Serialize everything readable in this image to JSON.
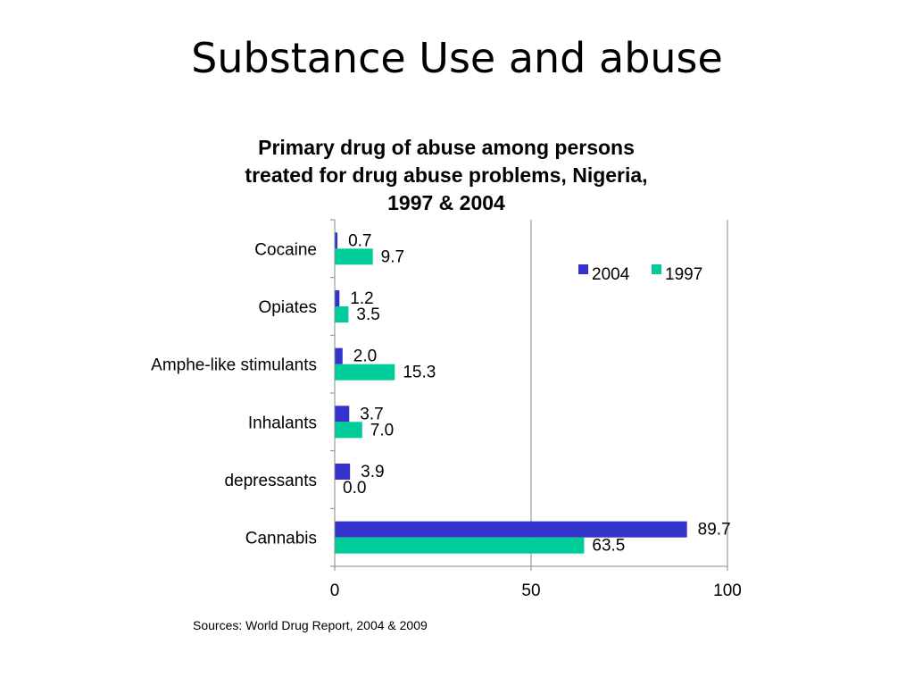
{
  "slide": {
    "title": "Substance Use and abuse"
  },
  "source": "Sources: World Drug Report, 2004 & 2009",
  "chart_data": {
    "type": "bar",
    "orientation": "horizontal",
    "title_lines": [
      "Primary drug of abuse among persons",
      "treated for drug abuse problems, Nigeria,",
      "1997 & 2004"
    ],
    "categories": [
      "Cocaine",
      "Opiates",
      "Amphe-like stimulants",
      "Inhalants",
      "depressants",
      "Cannabis"
    ],
    "series": [
      {
        "name": "2004",
        "color": "#3333cc",
        "values": [
          0.7,
          1.2,
          2.0,
          3.7,
          3.9,
          89.7
        ],
        "labels": [
          "0.7",
          "1.2",
          "2.0",
          "3.7",
          "3.9",
          "89.7"
        ]
      },
      {
        "name": "1997",
        "color": "#00cc99",
        "values": [
          9.7,
          3.5,
          15.3,
          7.0,
          0.0,
          63.5
        ],
        "labels": [
          "9.7",
          "3.5",
          "15.3",
          "7.0",
          "0.0",
          "63.5"
        ]
      }
    ],
    "xlim": [
      0,
      100
    ],
    "xticks": [
      0,
      50,
      100
    ],
    "xtick_labels": [
      "0",
      "50",
      "100"
    ],
    "gridlines": "vertical major",
    "legend_position": "top-right",
    "data_labels": true
  }
}
